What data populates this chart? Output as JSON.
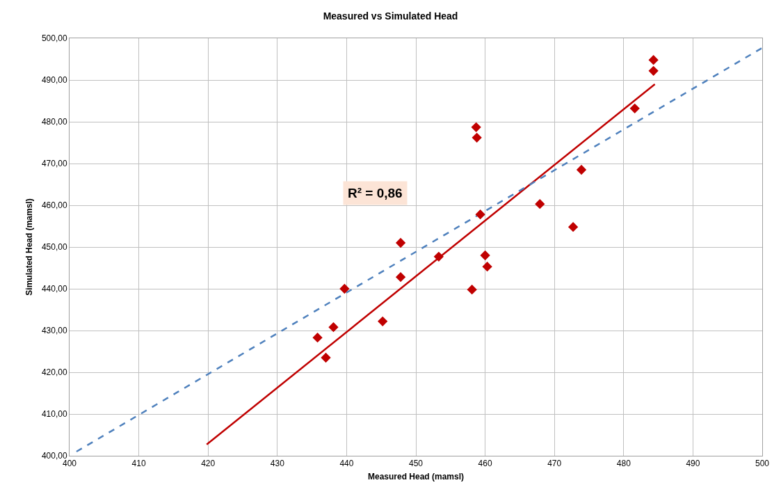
{
  "chart_data": {
    "type": "scatter",
    "title": "Measured vs Simulated Head",
    "xlabel": "Measured Head (mamsl)",
    "ylabel": "Simulated Head (mamsl)",
    "annotations": [
      "R² = 0,86"
    ],
    "series": [
      {
        "color": "#c00000",
        "marker": "diamond",
        "x": [
          435.8,
          437.0,
          438.1,
          439.7,
          445.2,
          447.8,
          447.8,
          453.3,
          459.3,
          460.0,
          460.3,
          458.1,
          458.7,
          458.8,
          467.9,
          472.7,
          473.9,
          481.6,
          484.3,
          484.3
        ],
        "values": [
          428.3,
          423.5,
          430.8,
          440.0,
          432.2,
          451.0,
          442.8,
          447.7,
          457.8,
          448.0,
          445.3,
          439.8,
          478.7,
          476.2,
          460.3,
          454.8,
          468.5,
          483.2,
          494.8,
          492.2
        ]
      },
      {
        "type": "line",
        "color": "#c00000",
        "line_style": "solid",
        "marker": "none",
        "x": [
          419.8,
          484.5
        ],
        "values": [
          402.7,
          489.0
        ]
      },
      {
        "type": "line",
        "color": "#4f81bd",
        "line_style": "dashed",
        "marker": "none",
        "x": [
          401,
          500
        ],
        "values": [
          401,
          497.7
        ]
      }
    ],
    "xlim": [
      400,
      500
    ],
    "xticks": [
      400,
      410,
      420,
      430,
      440,
      450,
      460,
      470,
      480,
      490,
      500
    ],
    "ylim": [
      400,
      500
    ],
    "yticks": [
      {
        "value": 400,
        "label": "400,00"
      },
      {
        "value": 410,
        "label": "410,00"
      },
      {
        "value": 420,
        "label": "420,00"
      },
      {
        "value": 430,
        "label": "430,00"
      },
      {
        "value": 440,
        "label": "440,00"
      },
      {
        "value": 450,
        "label": "450,00"
      },
      {
        "value": 460,
        "label": "460,00"
      },
      {
        "value": 470,
        "label": "470,00"
      },
      {
        "value": 480,
        "label": "480,00"
      },
      {
        "value": 490,
        "label": "490,00"
      },
      {
        "value": 500,
        "label": "500,00"
      }
    ],
    "grid": true
  }
}
